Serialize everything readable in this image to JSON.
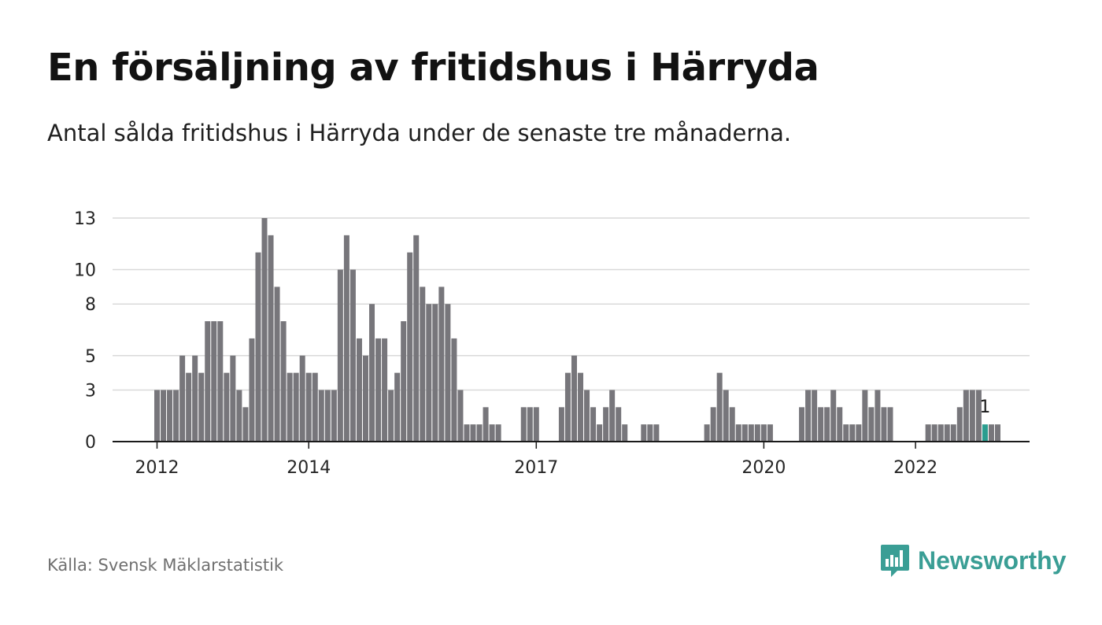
{
  "header": {
    "title": "En försäljning av fritidshus i Härryda",
    "subtitle": "Antal sålda fritidshus i Härryda under de senaste tre månaderna."
  },
  "footer": {
    "source": "Källa: Svensk Mäklarstatistik",
    "brand": "Newsworthy",
    "brand_icon": "newsworthy-logo-icon",
    "brand_color": "#3a9e95"
  },
  "chart_data": {
    "type": "bar",
    "ylim": [
      0,
      13
    ],
    "yticks": [
      0,
      3,
      5,
      8,
      10,
      13
    ],
    "xticks": [
      {
        "label": "2012",
        "index": 0
      },
      {
        "label": "2014",
        "index": 24
      },
      {
        "label": "2017",
        "index": 60
      },
      {
        "label": "2020",
        "index": 96
      },
      {
        "label": "2022",
        "index": 120
      }
    ],
    "grid": true,
    "bar_color": "#77767b",
    "highlight_color": "#2a9d8f",
    "highlight_index": 131,
    "highlight_label": "1",
    "values": [
      3,
      3,
      3,
      3,
      5,
      4,
      5,
      4,
      7,
      7,
      7,
      4,
      5,
      3,
      2,
      6,
      11,
      13,
      12,
      9,
      7,
      4,
      4,
      5,
      4,
      4,
      3,
      3,
      3,
      10,
      12,
      10,
      6,
      5,
      8,
      6,
      6,
      3,
      4,
      7,
      11,
      12,
      9,
      8,
      8,
      9,
      8,
      6,
      3,
      1,
      1,
      1,
      2,
      1,
      1,
      0,
      0,
      0,
      2,
      2,
      2,
      0,
      0,
      0,
      2,
      4,
      5,
      4,
      3,
      2,
      1,
      2,
      3,
      2,
      1,
      0,
      0,
      1,
      1,
      1,
      0,
      0,
      0,
      0,
      0,
      0,
      0,
      1,
      2,
      4,
      3,
      2,
      1,
      1,
      1,
      1,
      1,
      1,
      0,
      0,
      0,
      0,
      2,
      3,
      3,
      2,
      2,
      3,
      2,
      1,
      1,
      1,
      3,
      2,
      3,
      2,
      2,
      0,
      0,
      0,
      0,
      0,
      1,
      1,
      1,
      1,
      1,
      2,
      3,
      3,
      3,
      1,
      1,
      1
    ]
  }
}
